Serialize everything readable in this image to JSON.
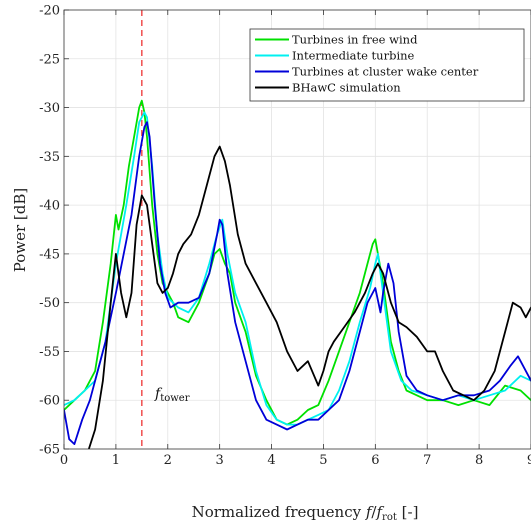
{
  "chart_data": {
    "type": "line",
    "xlabel": "Normalized frequency f/f_rot [-]",
    "xlabel_parts": [
      "Normalized frequency ",
      "f",
      "/",
      "f",
      "rot",
      " [-]"
    ],
    "ylabel": "Power [dB]",
    "xlim": [
      0,
      9
    ],
    "ylim": [
      -65,
      -20
    ],
    "xticks": [
      0,
      1,
      2,
      3,
      4,
      5,
      6,
      7,
      8,
      9
    ],
    "yticks": [
      -65,
      -60,
      -55,
      -50,
      -45,
      -40,
      -35,
      -30,
      -25,
      -20
    ],
    "xtick_labels": [
      "0",
      "1",
      "2",
      "3",
      "4",
      "5",
      "6",
      "7",
      "8",
      "9"
    ],
    "ytick_labels": [
      "-65",
      "-60",
      "-55",
      "-50",
      "-45",
      "-40",
      "-35",
      "-30",
      "-25",
      "-20"
    ],
    "grid": true,
    "legend_position": "top-right",
    "series": [
      {
        "name": "Turbines in free wind",
        "color": "#00e000",
        "x": [
          0,
          0.2,
          0.4,
          0.6,
          0.75,
          0.9,
          1.0,
          1.05,
          1.15,
          1.25,
          1.35,
          1.45,
          1.5,
          1.55,
          1.6,
          1.7,
          1.8,
          1.9,
          2.0,
          2.1,
          2.2,
          2.4,
          2.6,
          2.8,
          2.9,
          3.0,
          3.1,
          3.2,
          3.3,
          3.5,
          3.7,
          3.9,
          4.1,
          4.3,
          4.5,
          4.7,
          4.9,
          5.1,
          5.3,
          5.5,
          5.7,
          5.85,
          5.95,
          6.0,
          6.05,
          6.15,
          6.3,
          6.45,
          6.6,
          6.8,
          7.0,
          7.3,
          7.6,
          7.9,
          8.2,
          8.5,
          8.8,
          9.0
        ],
        "y": [
          -61,
          -60,
          -59,
          -57,
          -52,
          -46,
          -41,
          -42.5,
          -40,
          -36,
          -33,
          -30,
          -29.3,
          -30.5,
          -33,
          -40,
          -45,
          -48,
          -49,
          -50,
          -51.5,
          -52,
          -50,
          -47,
          -45,
          -44.5,
          -46,
          -47,
          -50,
          -53,
          -57.5,
          -60,
          -62,
          -62.5,
          -62,
          -61,
          -60.5,
          -58,
          -55,
          -52,
          -49,
          -46,
          -44,
          -43.5,
          -45,
          -48,
          -54,
          -57,
          -59,
          -59.5,
          -60,
          -60,
          -60.5,
          -60,
          -60.5,
          -58.5,
          -59,
          -60
        ]
      },
      {
        "name": "Intermediate turbine",
        "color": "#00f0f0",
        "x": [
          0,
          0.2,
          0.4,
          0.6,
          0.8,
          1.0,
          1.2,
          1.35,
          1.45,
          1.55,
          1.6,
          1.7,
          1.8,
          1.9,
          2.0,
          2.2,
          2.4,
          2.6,
          2.8,
          2.95,
          3.05,
          3.15,
          3.3,
          3.5,
          3.7,
          3.9,
          4.1,
          4.3,
          4.5,
          4.7,
          4.9,
          5.1,
          5.3,
          5.5,
          5.7,
          5.9,
          6.0,
          6.05,
          6.15,
          6.3,
          6.5,
          6.7,
          7.0,
          7.3,
          7.6,
          7.9,
          8.2,
          8.5,
          8.8,
          9.0
        ],
        "y": [
          -60.5,
          -60,
          -59,
          -58,
          -54,
          -46,
          -40,
          -35,
          -31.5,
          -30.5,
          -31,
          -36,
          -43,
          -47,
          -49.5,
          -50.5,
          -51,
          -49.5,
          -46,
          -43,
          -41.5,
          -45,
          -49,
          -52,
          -57,
          -60.5,
          -62,
          -62.5,
          -62.5,
          -62,
          -61.5,
          -61,
          -59,
          -56,
          -52,
          -48.5,
          -46,
          -45,
          -49,
          -55,
          -58,
          -59,
          -59.5,
          -60,
          -59.5,
          -60,
          -59.5,
          -59,
          -57.5,
          -58
        ]
      },
      {
        "name": "Turbines at cluster wake center",
        "color": "#0000d8",
        "x": [
          0,
          0.1,
          0.2,
          0.35,
          0.5,
          0.65,
          0.8,
          1.0,
          1.15,
          1.3,
          1.45,
          1.55,
          1.6,
          1.65,
          1.75,
          1.85,
          1.95,
          2.05,
          2.2,
          2.4,
          2.6,
          2.8,
          2.95,
          3.0,
          3.05,
          3.15,
          3.3,
          3.5,
          3.7,
          3.9,
          4.1,
          4.3,
          4.5,
          4.7,
          4.9,
          5.1,
          5.3,
          5.5,
          5.7,
          5.85,
          6.0,
          6.1,
          6.15,
          6.25,
          6.35,
          6.45,
          6.6,
          6.8,
          7.0,
          7.3,
          7.6,
          7.9,
          8.2,
          8.4,
          8.6,
          8.75,
          9.0
        ],
        "y": [
          -61,
          -64,
          -64.5,
          -62,
          -60,
          -57,
          -54,
          -49,
          -45,
          -41,
          -35,
          -32,
          -31.5,
          -33,
          -40,
          -46,
          -49,
          -50.5,
          -50,
          -50,
          -49.5,
          -47,
          -43,
          -41.5,
          -42,
          -47,
          -52,
          -56,
          -60,
          -62,
          -62.5,
          -63,
          -62.5,
          -62,
          -62,
          -61,
          -60,
          -57,
          -53,
          -50,
          -48.5,
          -51,
          -49,
          -46,
          -48,
          -53,
          -57.5,
          -59,
          -59.5,
          -60,
          -59.5,
          -59.5,
          -59,
          -58,
          -56.5,
          -55.5,
          -58
        ]
      },
      {
        "name": "BHawC simulation",
        "color": "#000000",
        "x": [
          0,
          0.15,
          0.3,
          0.45,
          0.6,
          0.75,
          0.9,
          1.0,
          1.1,
          1.2,
          1.3,
          1.4,
          1.5,
          1.6,
          1.7,
          1.8,
          1.9,
          2.0,
          2.1,
          2.2,
          2.3,
          2.45,
          2.6,
          2.75,
          2.9,
          3.0,
          3.1,
          3.2,
          3.35,
          3.5,
          3.7,
          3.9,
          4.1,
          4.3,
          4.5,
          4.7,
          4.9,
          5.0,
          5.1,
          5.2,
          5.4,
          5.6,
          5.8,
          5.95,
          6.05,
          6.15,
          6.3,
          6.45,
          6.6,
          6.8,
          7.0,
          7.15,
          7.3,
          7.5,
          7.7,
          7.9,
          8.1,
          8.3,
          8.5,
          8.65,
          8.8,
          8.9,
          9.0
        ],
        "y": [
          -66,
          -66,
          -66,
          -65.5,
          -63,
          -58,
          -50,
          -45,
          -49,
          -51.5,
          -49,
          -42,
          -39,
          -40,
          -44,
          -48,
          -49,
          -48.5,
          -47,
          -45,
          -44,
          -43,
          -41,
          -38,
          -35,
          -34,
          -35.5,
          -38,
          -43,
          -46,
          -48,
          -50,
          -52,
          -55,
          -57,
          -56,
          -58.5,
          -57,
          -55,
          -54,
          -52.5,
          -51,
          -49,
          -47,
          -46,
          -47,
          -50,
          -52,
          -52.5,
          -53.5,
          -55,
          -55,
          -57,
          -59,
          -59.5,
          -60,
          -59,
          -57,
          -53,
          -50,
          -50.5,
          -51.5,
          -50.5
        ]
      }
    ],
    "vline": {
      "x": 1.5,
      "color": "#ee3333",
      "style": "dashed"
    },
    "annotations": [
      {
        "text": "f",
        "subscript": "tower",
        "x": 1.75,
        "y": -61.5
      }
    ]
  }
}
